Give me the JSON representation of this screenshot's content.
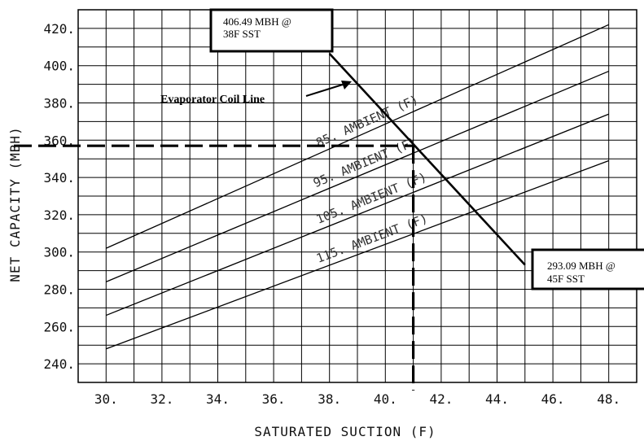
{
  "chart_data": {
    "type": "line",
    "xlabel": "SATURATED SUCTION (F)",
    "ylabel": "NET CAPACITY (MBH)",
    "xlim": [
      29,
      49
    ],
    "ylim": [
      230,
      430
    ],
    "x_ticks": [
      "30.",
      "32.",
      "34.",
      "36.",
      "38.",
      "40.",
      "42.",
      "44.",
      "46.",
      "48."
    ],
    "y_ticks": [
      "240.",
      "260.",
      "280.",
      "300.",
      "320.",
      "340.",
      "360.",
      "380.",
      "400.",
      "420."
    ],
    "grid": true,
    "series": [
      {
        "name": "85. AMBIENT (F)",
        "x": [
          30,
          48
        ],
        "y": [
          302,
          422
        ]
      },
      {
        "name": "95. AMBIENT (F)",
        "x": [
          30,
          48
        ],
        "y": [
          284,
          397
        ]
      },
      {
        "name": "105. AMBIENT (F)",
        "x": [
          30,
          48
        ],
        "y": [
          266,
          374
        ]
      },
      {
        "name": "115. AMBIENT (F)",
        "x": [
          30,
          48
        ],
        "y": [
          248,
          349
        ]
      }
    ],
    "evaporator_coil_line": {
      "x": [
        38,
        45
      ],
      "y": [
        406.49,
        293.09
      ]
    },
    "operating_point": {
      "x": 41,
      "y": 357
    },
    "annotations": {
      "coil_label": "Evaporator Coil Line",
      "callout_top": [
        "406.49 MBH @",
        "38F SST"
      ],
      "callout_bottom": [
        "293.09 MBH @",
        "45F SST"
      ]
    }
  }
}
